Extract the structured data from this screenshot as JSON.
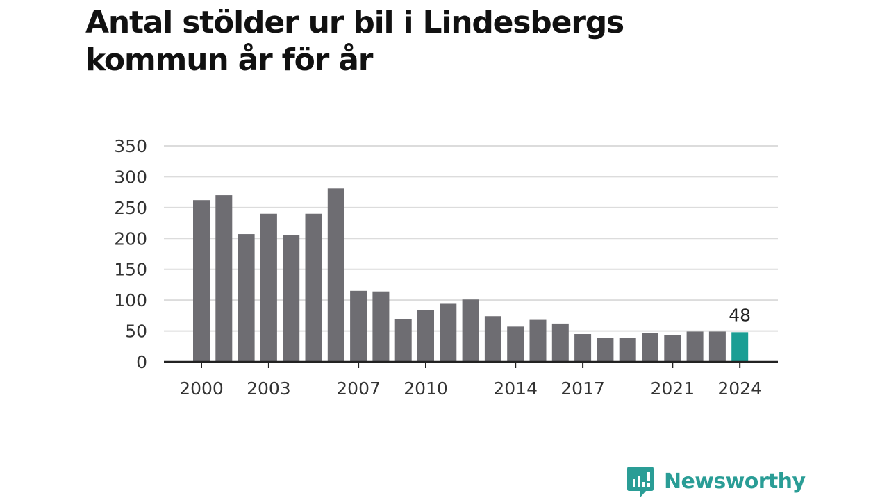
{
  "title": "Antal stölder ur bil i Lindesbergs kommun år för år",
  "brand": {
    "name": "Newsworthy",
    "icon": "newsworthy-logo-icon",
    "color": "#2a9d96"
  },
  "chart_data": {
    "type": "bar",
    "title": "Antal stölder ur bil i Lindesbergs kommun år för år",
    "xlabel": "",
    "ylabel": "",
    "categories": [
      "2000",
      "2001",
      "2002",
      "2003",
      "2004",
      "2005",
      "2006",
      "2007",
      "2008",
      "2009",
      "2010",
      "2011",
      "2012",
      "2013",
      "2014",
      "2015",
      "2016",
      "2017",
      "2018",
      "2019",
      "2020",
      "2021",
      "2022",
      "2023",
      "2024"
    ],
    "values": [
      262,
      270,
      207,
      240,
      205,
      240,
      281,
      115,
      114,
      69,
      84,
      94,
      101,
      74,
      57,
      68,
      62,
      45,
      39,
      39,
      47,
      43,
      49,
      49,
      48
    ],
    "x_tick_labels": [
      "2000",
      "2003",
      "2007",
      "2010",
      "2014",
      "2017",
      "2021",
      "2024"
    ],
    "yticks": [
      0,
      50,
      100,
      150,
      200,
      250,
      300,
      350
    ],
    "ylim": [
      0,
      350
    ],
    "grid": true,
    "highlight": {
      "category": "2024",
      "label": "48",
      "color": "#1a9e94"
    },
    "bar_color": "#6e6d72",
    "grid_color": "#dcdcdc",
    "axis_color": "#222222"
  }
}
